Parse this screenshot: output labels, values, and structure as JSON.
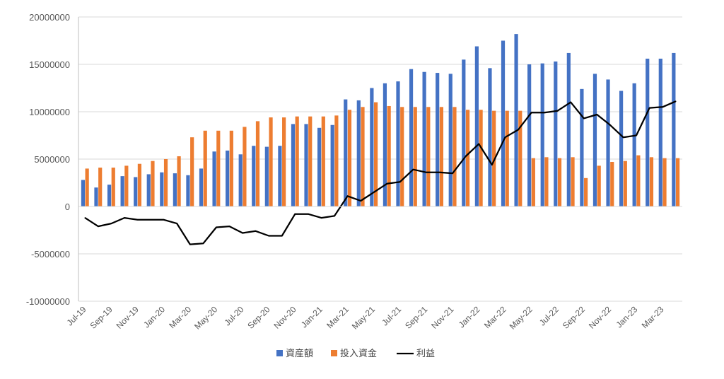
{
  "chart_data": {
    "type": "bar",
    "title": "",
    "xlabel": "",
    "ylabel": "",
    "ylim": [
      -10000000,
      20000000
    ],
    "yticks": [
      -10000000,
      -5000000,
      0,
      5000000,
      10000000,
      15000000,
      20000000
    ],
    "ytick_labels": [
      "-10000000",
      "-5000000",
      "0",
      "5000000",
      "10000000",
      "15000000",
      "20000000"
    ],
    "grid": true,
    "legend_position": "bottom",
    "categories": [
      "Jul-19",
      "Aug-19",
      "Sep-19",
      "Oct-19",
      "Nov-19",
      "Dec-19",
      "Jan-20",
      "Feb-20",
      "Mar-20",
      "Apr-20",
      "May-20",
      "Jun-20",
      "Jul-20",
      "Aug-20",
      "Sep-20",
      "Oct-20",
      "Nov-20",
      "Dec-20",
      "Jan-21",
      "Feb-21",
      "Mar-21",
      "Apr-21",
      "May-21",
      "Jun-21",
      "Jul-21",
      "Aug-21",
      "Sep-21",
      "Oct-21",
      "Nov-21",
      "Dec-21",
      "Jan-22",
      "Feb-22",
      "Mar-22",
      "Apr-22",
      "May-22",
      "Jun-22",
      "Jul-22",
      "Aug-22",
      "Sep-22",
      "Oct-22",
      "Nov-22",
      "Dec-22",
      "Jan-23",
      "Feb-23",
      "Mar-23",
      "Apr-23"
    ],
    "x_tick_labels": [
      "Jul-19",
      "Sep-19",
      "Nov-19",
      "Jan-20",
      "Mar-20",
      "May-20",
      "Jul-20",
      "Sep-20",
      "Nov-20",
      "Jan-21",
      "Mar-21",
      "May-21",
      "Jul-21",
      "Sep-21",
      "Nov-21",
      "Jan-22",
      "Mar-22",
      "May-22",
      "Jul-22",
      "Sep-22",
      "Nov-22",
      "Jan-23",
      "Mar-23"
    ],
    "series": [
      {
        "name": "資産額",
        "kind": "bar",
        "color": "#4472C4",
        "values": [
          2800000,
          2000000,
          2300000,
          3200000,
          3100000,
          3400000,
          3600000,
          3500000,
          3300000,
          4000000,
          5800000,
          5900000,
          5500000,
          6400000,
          6300000,
          6400000,
          8700000,
          8700000,
          8300000,
          8600000,
          11300000,
          11200000,
          12500000,
          13000000,
          13200000,
          14500000,
          14200000,
          14100000,
          14000000,
          15500000,
          16900000,
          14600000,
          17500000,
          18200000,
          15000000,
          15100000,
          15300000,
          16200000,
          12400000,
          14000000,
          13400000,
          12200000,
          13000000,
          15600000,
          15600000,
          16200000
        ]
      },
      {
        "name": "投入資金",
        "kind": "bar",
        "color": "#ED7D31",
        "values": [
          4000000,
          4100000,
          4100000,
          4300000,
          4500000,
          4800000,
          5000000,
          5300000,
          7300000,
          8000000,
          8000000,
          8000000,
          8400000,
          9000000,
          9400000,
          9400000,
          9500000,
          9500000,
          9500000,
          9600000,
          10200000,
          10500000,
          11000000,
          10600000,
          10500000,
          10500000,
          10500000,
          10500000,
          10500000,
          10200000,
          10200000,
          10100000,
          10100000,
          10100000,
          5100000,
          5200000,
          5100000,
          5200000,
          3000000,
          4300000,
          4700000,
          4800000,
          5400000,
          5200000,
          5100000,
          5100000
        ]
      },
      {
        "name": "利益",
        "kind": "line",
        "color": "#000000",
        "values": [
          -1200000,
          -2100000,
          -1800000,
          -1200000,
          -1400000,
          -1400000,
          -1400000,
          -1800000,
          -4000000,
          -3900000,
          -2200000,
          -2100000,
          -2800000,
          -2600000,
          -3100000,
          -3100000,
          -800000,
          -800000,
          -1200000,
          -1000000,
          1100000,
          600000,
          1500000,
          2400000,
          2600000,
          3900000,
          3600000,
          3600000,
          3500000,
          5300000,
          6600000,
          4400000,
          7300000,
          8100000,
          9900000,
          9900000,
          10100000,
          11000000,
          9300000,
          9700000,
          8600000,
          7300000,
          7500000,
          10400000,
          10500000,
          11100000
        ]
      }
    ]
  }
}
